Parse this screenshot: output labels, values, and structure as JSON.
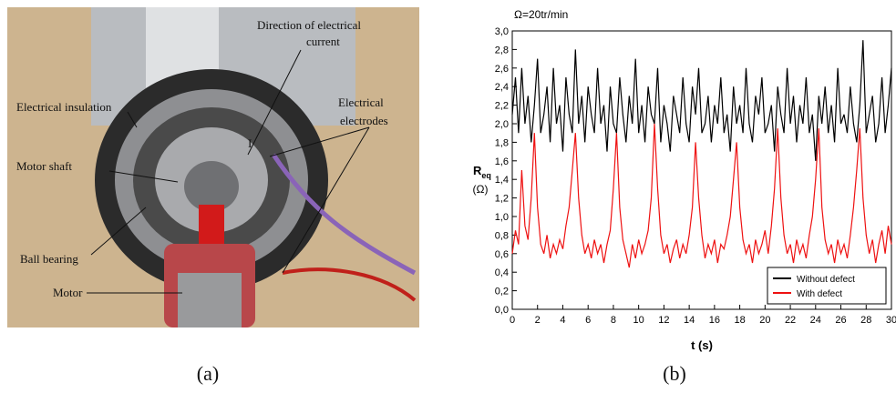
{
  "photo": {
    "labels": [
      [
        "Direction of electrical",
        "current"
      ],
      [
        "Electrical insulation"
      ],
      [
        "Electrical",
        "electrodes"
      ],
      [
        "Motor shaft"
      ],
      [
        "Ball bearing"
      ],
      [
        "Motor"
      ],
      [
        "I"
      ]
    ]
  },
  "captions": [
    "(a)",
    "(b)"
  ],
  "chart_data": {
    "type": "line",
    "title": "Ω=20tr/min",
    "x_label": "t (s)",
    "y_label": {
      "main": "R",
      "sub": "eq",
      "unit": "(Ω)"
    },
    "xlim": [
      0,
      30
    ],
    "ylim": [
      0,
      3
    ],
    "xticks": [
      0,
      2,
      4,
      6,
      8,
      10,
      12,
      14,
      16,
      18,
      20,
      22,
      24,
      26,
      28,
      30
    ],
    "yticks": [
      {
        "value": 0,
        "label": "0,0"
      },
      {
        "value": 0.2,
        "label": "0,2"
      },
      {
        "value": 0.4,
        "label": "0,4"
      },
      {
        "value": 0.6,
        "label": "0,6"
      },
      {
        "value": 0.8,
        "label": "0,8"
      },
      {
        "value": 1,
        "label": "1,0"
      },
      {
        "value": 1.2,
        "label": "1,2"
      },
      {
        "value": 1.4,
        "label": "1,4"
      },
      {
        "value": 1.6,
        "label": "1,6"
      },
      {
        "value": 1.8,
        "label": "1,8"
      },
      {
        "value": 2,
        "label": "2,0"
      },
      {
        "value": 2.2,
        "label": "2,2"
      },
      {
        "value": 2.4,
        "label": "2,4"
      },
      {
        "value": 2.6,
        "label": "2,6"
      },
      {
        "value": 2.8,
        "label": "2,8"
      },
      {
        "value": 3,
        "label": "3,0"
      }
    ],
    "legend": "lower right",
    "x": [
      0,
      0.25,
      0.5,
      0.75,
      1,
      1.25,
      1.5,
      1.75,
      2,
      2.25,
      2.5,
      2.75,
      3,
      3.25,
      3.5,
      3.75,
      4,
      4.25,
      4.5,
      4.75,
      5,
      5.25,
      5.5,
      5.75,
      6,
      6.25,
      6.5,
      6.75,
      7,
      7.25,
      7.5,
      7.75,
      8,
      8.25,
      8.5,
      8.75,
      9,
      9.25,
      9.5,
      9.75,
      10,
      10.25,
      10.5,
      10.75,
      11,
      11.25,
      11.5,
      11.75,
      12,
      12.25,
      12.5,
      12.75,
      13,
      13.25,
      13.5,
      13.75,
      14,
      14.25,
      14.5,
      14.75,
      15,
      15.25,
      15.5,
      15.75,
      16,
      16.25,
      16.5,
      16.75,
      17,
      17.25,
      17.5,
      17.75,
      18,
      18.25,
      18.5,
      18.75,
      19,
      19.25,
      19.5,
      19.75,
      20,
      20.25,
      20.5,
      20.75,
      21,
      21.25,
      21.5,
      21.75,
      22,
      22.25,
      22.5,
      22.75,
      23,
      23.25,
      23.5,
      23.75,
      24,
      24.25,
      24.5,
      24.75,
      25,
      25.25,
      25.5,
      25.75,
      26,
      26.25,
      26.5,
      26.75,
      27,
      27.25,
      27.5,
      27.75,
      28,
      28.25,
      28.5,
      28.75,
      29,
      29.25,
      29.5,
      29.75,
      30
    ],
    "series": [
      {
        "name": "Without defect",
        "color": "#000000",
        "values": [
          2.1,
          2.5,
          1.9,
          2.6,
          2.0,
          2.3,
          1.8,
          2.2,
          2.7,
          1.9,
          2.1,
          2.4,
          1.8,
          2.6,
          2.0,
          2.2,
          1.7,
          2.5,
          2.1,
          1.9,
          2.8,
          2.0,
          2.3,
          1.8,
          2.4,
          2.1,
          1.9,
          2.6,
          2.0,
          2.2,
          1.7,
          2.4,
          2.0,
          1.9,
          2.5,
          2.1,
          1.8,
          2.3,
          2.0,
          2.7,
          1.9,
          2.2,
          1.8,
          2.4,
          2.1,
          2.0,
          2.6,
          1.8,
          2.2,
          2.0,
          1.7,
          2.3,
          2.1,
          1.9,
          2.5,
          2.0,
          1.8,
          2.4,
          2.1,
          2.6,
          1.9,
          2.0,
          2.3,
          1.8,
          2.2,
          2.0,
          2.5,
          1.9,
          2.1,
          1.7,
          2.4,
          2.0,
          2.2,
          1.9,
          2.6,
          2.0,
          1.8,
          2.3,
          2.1,
          2.5,
          1.9,
          2.0,
          2.2,
          1.7,
          2.4,
          2.1,
          1.9,
          2.6,
          2.0,
          2.3,
          1.8,
          2.2,
          2.0,
          2.5,
          1.9,
          2.1,
          1.6,
          2.3,
          2.0,
          2.4,
          1.9,
          2.2,
          1.8,
          2.6,
          2.0,
          2.1,
          1.9,
          2.4,
          2.0,
          1.8,
          2.2,
          2.9,
          1.9,
          2.1,
          2.3,
          1.8,
          2.0,
          2.5,
          1.9,
          2.2,
          2.6
        ]
      },
      {
        "name": "With defect",
        "color": "#ee1111",
        "values": [
          0.6,
          0.85,
          0.7,
          1.5,
          0.9,
          0.75,
          1.2,
          1.9,
          1.1,
          0.7,
          0.6,
          0.8,
          0.55,
          0.7,
          0.6,
          0.75,
          0.65,
          0.9,
          1.1,
          1.5,
          1.9,
          1.2,
          0.8,
          0.6,
          0.7,
          0.55,
          0.75,
          0.6,
          0.7,
          0.5,
          0.7,
          0.85,
          1.3,
          1.9,
          1.1,
          0.75,
          0.6,
          0.45,
          0.7,
          0.55,
          0.75,
          0.6,
          0.7,
          0.85,
          1.2,
          2.0,
          1.3,
          0.8,
          0.6,
          0.7,
          0.5,
          0.65,
          0.75,
          0.55,
          0.7,
          0.6,
          0.8,
          1.1,
          1.8,
          1.2,
          0.8,
          0.55,
          0.7,
          0.6,
          0.75,
          0.5,
          0.7,
          0.65,
          0.8,
          1.0,
          1.4,
          1.8,
          1.1,
          0.75,
          0.6,
          0.7,
          0.5,
          0.75,
          0.6,
          0.7,
          0.85,
          0.6,
          0.9,
          1.3,
          1.95,
          1.2,
          0.8,
          0.6,
          0.7,
          0.5,
          0.75,
          0.6,
          0.7,
          0.55,
          0.8,
          1.0,
          1.4,
          1.95,
          1.1,
          0.75,
          0.6,
          0.7,
          0.5,
          0.75,
          0.6,
          0.7,
          0.55,
          0.8,
          1.1,
          1.5,
          1.95,
          1.2,
          0.8,
          0.6,
          0.75,
          0.5,
          0.7,
          0.85,
          0.6,
          0.9,
          0.7
        ]
      }
    ]
  }
}
